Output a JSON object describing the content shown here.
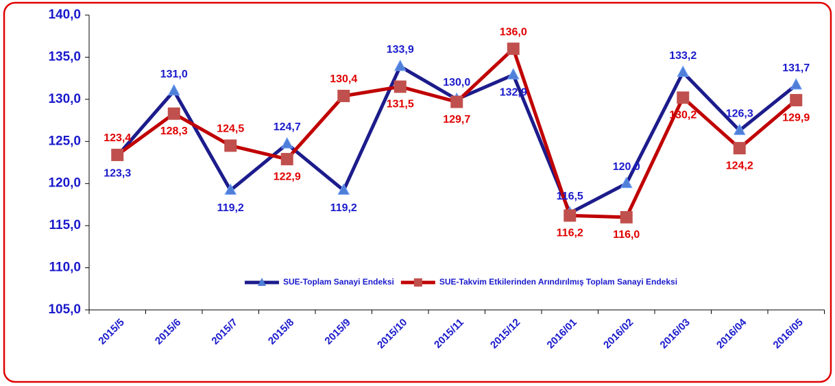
{
  "chart_data": {
    "type": "line",
    "categories": [
      "2015/5",
      "2015/6",
      "2015/7",
      "2015/8",
      "2015/9",
      "2015/10",
      "2015/11",
      "2015/12",
      "2016/01",
      "2016/02",
      "2016/03",
      "2016/04",
      "2016/05"
    ],
    "series": [
      {
        "name": "SUE-Toplam Sanayi Endeksi",
        "color": "#1c1c8c",
        "marker_color": "#4f7fd6",
        "values": [
          123.3,
          131.0,
          119.2,
          124.7,
          119.2,
          133.9,
          130.0,
          132.9,
          116.5,
          120.0,
          133.2,
          126.3,
          131.7
        ],
        "value_labels": [
          "123,3",
          "131,0",
          "119,2",
          "124,7",
          "119,2",
          "133,9",
          "130,0",
          "132,9",
          "116,5",
          "120,0",
          "133,2",
          "126,3",
          "131,7"
        ],
        "label_color": "#1a1acc"
      },
      {
        "name": "SUE-Takvim Etkilerinden Arındırılmış Toplam Sanayi Endeksi",
        "color": "#c00000",
        "marker_color": "#c0504d",
        "values": [
          123.4,
          128.3,
          124.5,
          122.9,
          130.4,
          131.5,
          129.7,
          136.0,
          116.2,
          116.0,
          130.2,
          124.2,
          129.9
        ],
        "value_labels": [
          "123,4",
          "128,3",
          "124,5",
          "122,9",
          "130,4",
          "131,5",
          "129,7",
          "136,0",
          "116,2",
          "116,0",
          "130,2",
          "124,2",
          "129,9"
        ],
        "label_color": "#e00000"
      }
    ],
    "ylim": [
      105,
      140
    ],
    "yticks": [
      {
        "value": 105,
        "label": "105,0"
      },
      {
        "value": 110,
        "label": "110,0"
      },
      {
        "value": 115,
        "label": "115,0"
      },
      {
        "value": 120,
        "label": "120,0"
      },
      {
        "value": 125,
        "label": "125,0"
      },
      {
        "value": 130,
        "label": "130,0"
      },
      {
        "value": 135,
        "label": "135,0"
      },
      {
        "value": 140,
        "label": "140,0"
      }
    ],
    "grid": false,
    "legend": "lower right"
  }
}
